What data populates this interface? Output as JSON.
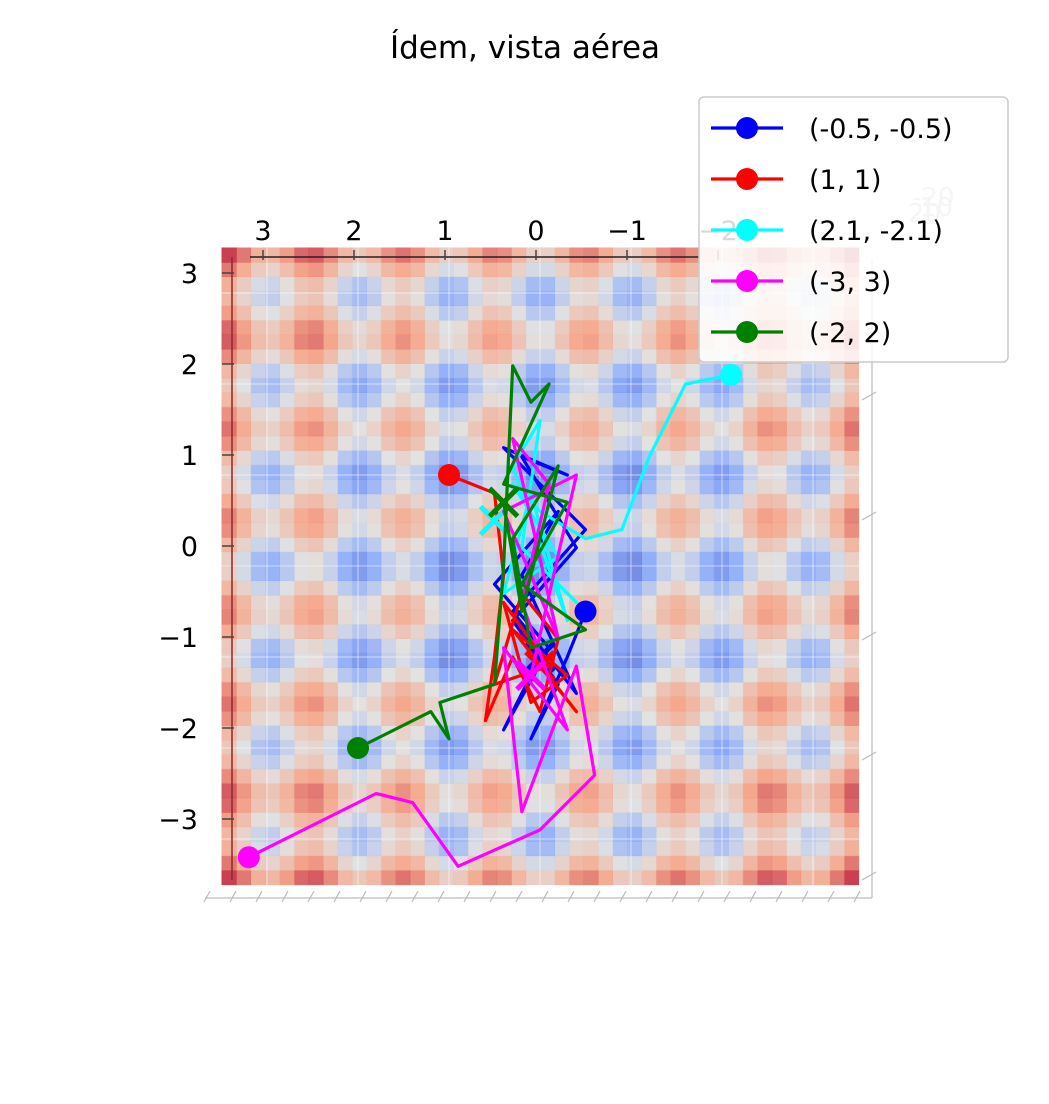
{
  "chart_data": {
    "type": "line",
    "subtype": "3d-surface-top-view",
    "title": "Ídem, vista aérea",
    "xlabel": "",
    "ylabel": "",
    "x_ticks": [
      "3",
      "2",
      "1",
      "0",
      "−1",
      "−2"
    ],
    "y_ticks": [
      "3",
      "2",
      "1",
      "0",
      "−1",
      "−2",
      "−3"
    ],
    "xlim": [
      3.4,
      -3.4
    ],
    "ylim": [
      -3.4,
      3.4
    ],
    "grid": true,
    "legend_position": "top-right",
    "surface": {
      "colormap": "coolwarm",
      "description": "Rastrigin-like function surface seen from above"
    },
    "series": [
      {
        "name": "(-0.5, -0.5)",
        "color": "#0000ff",
        "start": [
          -0.5,
          -0.5
        ],
        "points": [
          [
            -0.5,
            -0.5
          ],
          [
            -0.3,
            -1.0
          ],
          [
            0.1,
            -1.9
          ],
          [
            -0.2,
            -1.3
          ],
          [
            0.3,
            -0.6
          ],
          [
            -0.4,
            0.2
          ],
          [
            0.2,
            1.2
          ],
          [
            -0.3,
            1.0
          ],
          [
            0.4,
            1.3
          ],
          [
            -0.5,
            0.4
          ],
          [
            0.3,
            -0.5
          ],
          [
            -0.4,
            -1.4
          ],
          [
            0.2,
            -0.1
          ],
          [
            -0.2,
            0.6
          ],
          [
            0.5,
            -0.2
          ],
          [
            -0.1,
            -0.9
          ],
          [
            0.4,
            -1.8
          ],
          [
            0.0,
            -1.0
          ]
        ]
      },
      {
        "name": "(1, 1)",
        "color": "#ff0000",
        "start": [
          1.0,
          1.0
        ],
        "points": [
          [
            1.0,
            1.0
          ],
          [
            0.5,
            0.8
          ],
          [
            0.4,
            -0.1
          ],
          [
            0.5,
            -1.0
          ],
          [
            0.6,
            -1.7
          ],
          [
            0.3,
            -1.0
          ],
          [
            0.0,
            -1.6
          ],
          [
            -0.2,
            -0.8
          ],
          [
            0.2,
            -0.3
          ],
          [
            0.5,
            -1.3
          ],
          [
            -0.1,
            -1.1
          ],
          [
            0.4,
            -0.4
          ],
          [
            0.1,
            -1.5
          ],
          [
            -0.3,
            -1.2
          ],
          [
            0.3,
            -0.7
          ],
          [
            -0.4,
            -1.6
          ],
          [
            0.0,
            -1.1
          ]
        ]
      },
      {
        "name": "(2.1, -2.1)",
        "color": "#00ffff",
        "start": [
          -2.1,
          2.1
        ],
        "points": [
          [
            -2.1,
            2.1
          ],
          [
            -1.6,
            2.0
          ],
          [
            -1.2,
            1.2
          ],
          [
            -0.9,
            0.4
          ],
          [
            -0.5,
            0.3
          ],
          [
            0.0,
            0.6
          ],
          [
            0.3,
            0.9
          ],
          [
            -0.2,
            0.1
          ],
          [
            0.4,
            -0.3
          ],
          [
            0.1,
            0.8
          ],
          [
            -0.3,
            -0.6
          ],
          [
            0.3,
            1.1
          ],
          [
            0.0,
            1.6
          ],
          [
            0.2,
            0.2
          ],
          [
            -0.4,
            -0.4
          ],
          [
            0.5,
            0.5
          ]
        ]
      },
      {
        "name": "(-3, 3)",
        "color": "#ff00ff",
        "start": [
          3.2,
          -3.2
        ],
        "points": [
          [
            3.2,
            -3.2
          ],
          [
            1.8,
            -2.5
          ],
          [
            1.4,
            -2.6
          ],
          [
            0.9,
            -3.3
          ],
          [
            0.0,
            -2.9
          ],
          [
            -0.6,
            -2.3
          ],
          [
            -0.4,
            -1.1
          ],
          [
            0.2,
            -2.7
          ],
          [
            0.4,
            -0.9
          ],
          [
            -0.3,
            -1.8
          ],
          [
            0.2,
            -0.4
          ],
          [
            -0.1,
            0.9
          ],
          [
            0.3,
            1.4
          ],
          [
            -0.2,
            -0.8
          ],
          [
            0.4,
            0.6
          ],
          [
            -0.4,
            1.0
          ],
          [
            0.1,
            -1.2
          ]
        ]
      },
      {
        "name": "(-2, 2)",
        "color": "#008000",
        "start": [
          2.0,
          -2.0
        ],
        "points": [
          [
            2.0,
            -2.0
          ],
          [
            1.2,
            -1.6
          ],
          [
            1.0,
            -1.9
          ],
          [
            1.1,
            -1.5
          ],
          [
            0.5,
            -1.3
          ],
          [
            0.4,
            0.0
          ],
          [
            0.3,
            2.2
          ],
          [
            0.1,
            1.8
          ],
          [
            -0.1,
            2.0
          ],
          [
            0.4,
            0.9
          ],
          [
            -0.3,
            0.7
          ],
          [
            0.2,
            -0.2
          ],
          [
            -0.5,
            -0.7
          ],
          [
            0.1,
            -0.9
          ],
          [
            0.3,
            0.3
          ],
          [
            -0.2,
            1.1
          ],
          [
            0.2,
            -0.5
          ],
          [
            0.4,
            0.7
          ]
        ]
      }
    ],
    "ghost_ticks": [
      "-20",
      "10",
      "20"
    ]
  }
}
